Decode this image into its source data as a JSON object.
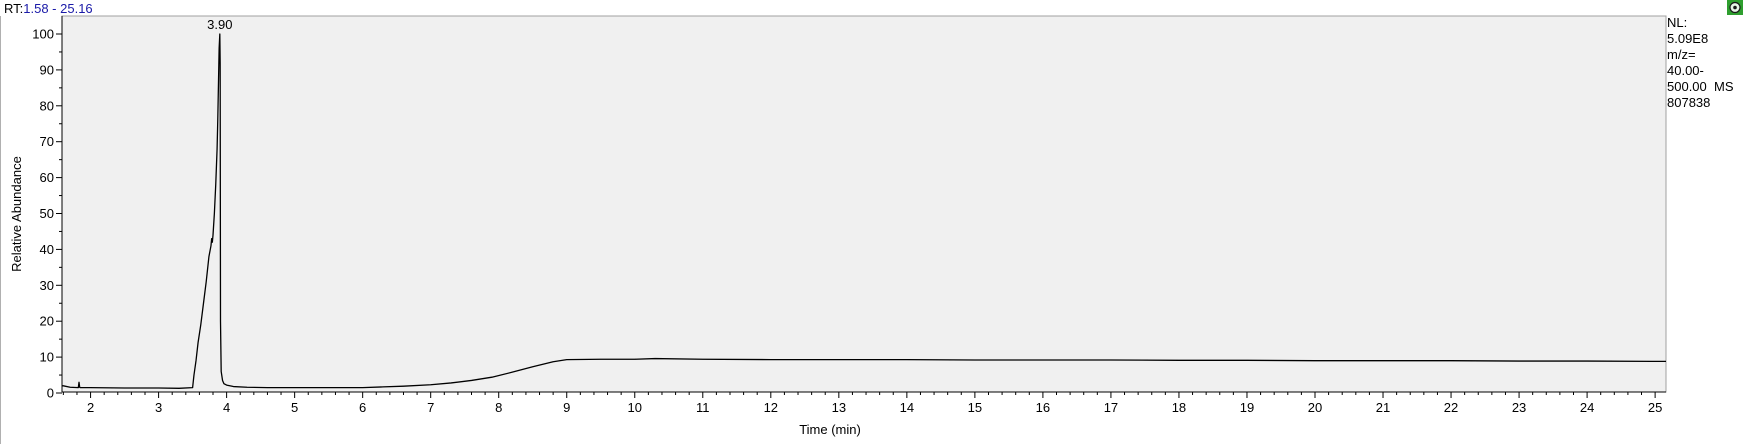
{
  "header": {
    "range_prefix": "RT:",
    "range_value": "1.58 - 25.16",
    "range_color": "#1a1aa8"
  },
  "corner_icon": {
    "name": "chromatogram-settings-icon",
    "colors": [
      "#2e9e2e",
      "#e8f5e8",
      "#1a1a1a"
    ]
  },
  "info_panel": {
    "lines": [
      "NL:",
      "5.09E8",
      "m/z=",
      "40.00-",
      "500.00  MS",
      "807838"
    ]
  },
  "chart_data": {
    "type": "line",
    "xlabel": "Time (min)",
    "ylabel": "Relative Abundance",
    "xlim": [
      1.58,
      25.16
    ],
    "ylim": [
      0,
      100
    ],
    "x_ticks": [
      2,
      3,
      4,
      5,
      6,
      7,
      8,
      9,
      10,
      11,
      12,
      13,
      14,
      15,
      16,
      17,
      18,
      19,
      20,
      21,
      22,
      23,
      24,
      25
    ],
    "y_ticks": [
      0,
      10,
      20,
      30,
      40,
      50,
      60,
      70,
      80,
      90,
      100
    ],
    "grid": false,
    "plot_background": "#f0f0f0",
    "line_color": "#000000",
    "annotations": [
      {
        "x": 3.9,
        "y": 100,
        "text": "3.90"
      }
    ],
    "series": [
      {
        "x": [
          1.58,
          1.6,
          1.7,
          1.82,
          1.83,
          1.84,
          1.85,
          2.0,
          2.5,
          3.0,
          3.3,
          3.5,
          3.52,
          3.55,
          3.58,
          3.62,
          3.66,
          3.7,
          3.74,
          3.77,
          3.78,
          3.79,
          3.8,
          3.82,
          3.84,
          3.86,
          3.87,
          3.88,
          3.89,
          3.9,
          3.905,
          3.91,
          3.92,
          3.94,
          3.96,
          4.0,
          4.1,
          4.3,
          4.6,
          5.0,
          5.5,
          6.0,
          6.3,
          6.6,
          7.0,
          7.3,
          7.6,
          7.9,
          8.2,
          8.5,
          8.8,
          9.0,
          9.5,
          10.0,
          10.3,
          11.0,
          12.0,
          13.0,
          14.0,
          15.0,
          16.0,
          17.0,
          18.0,
          19.0,
          20.0,
          21.0,
          22.0,
          23.0,
          24.0,
          25.16
        ],
        "y": [
          2.0,
          2.0,
          1.6,
          1.5,
          3.0,
          1.6,
          1.5,
          1.5,
          1.4,
          1.4,
          1.3,
          1.5,
          5.0,
          9.0,
          14.0,
          19.0,
          25.0,
          31.0,
          38.0,
          41.0,
          43.0,
          42.0,
          44.0,
          50.0,
          58.0,
          68.0,
          76.0,
          86.0,
          96.0,
          100.0,
          92.0,
          20.0,
          6.0,
          3.5,
          2.6,
          2.2,
          1.8,
          1.6,
          1.5,
          1.5,
          1.5,
          1.5,
          1.7,
          1.9,
          2.3,
          2.8,
          3.5,
          4.4,
          5.8,
          7.3,
          8.7,
          9.3,
          9.4,
          9.4,
          9.6,
          9.4,
          9.3,
          9.3,
          9.3,
          9.2,
          9.2,
          9.2,
          9.1,
          9.1,
          9.0,
          9.0,
          9.0,
          8.9,
          8.9,
          8.8
        ]
      }
    ]
  }
}
